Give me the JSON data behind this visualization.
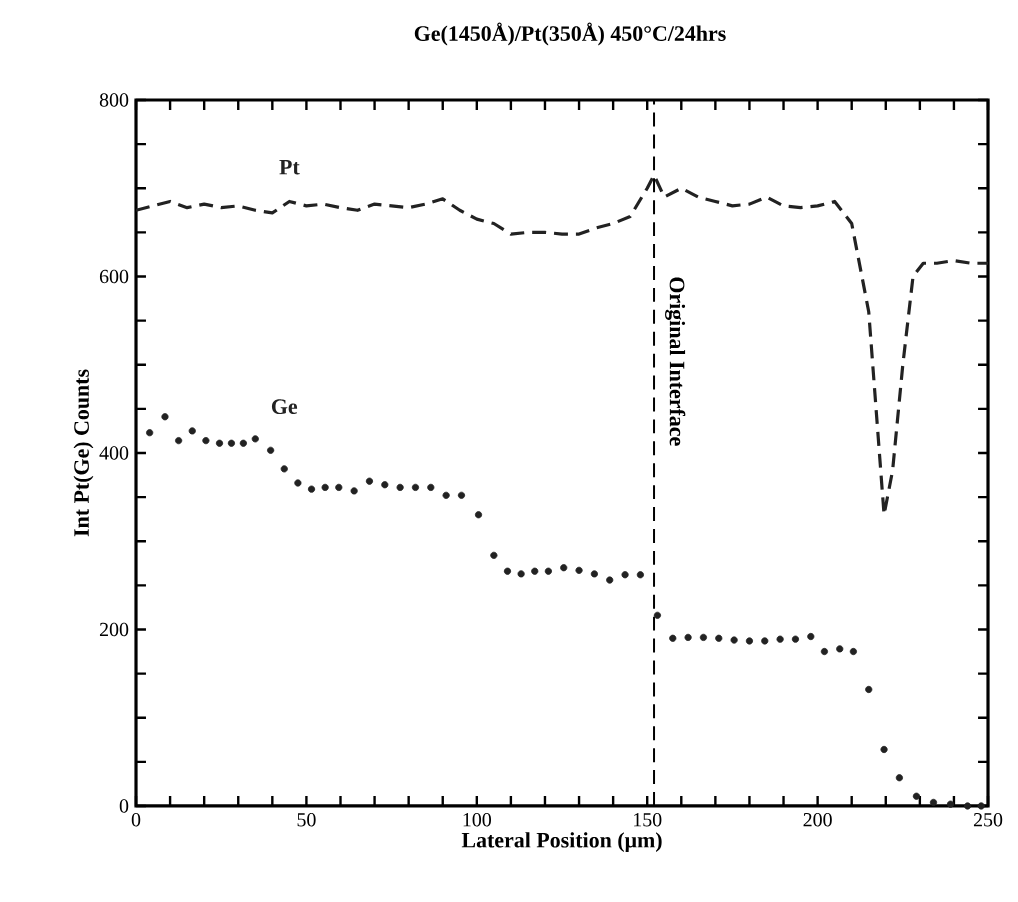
{
  "chart_data": {
    "type": "line",
    "title": "Ge(1450Å)/Pt(350Å) 450°C/24hrs",
    "xlabel": "Lateral Position (μm)",
    "ylabel": "Int Pt(Ge) Counts",
    "series": [
      {
        "name": "Pt",
        "color": "#222222",
        "marker": "none",
        "line_style": "dashed",
        "x": [
          0,
          5,
          10,
          15,
          20,
          25,
          30,
          35,
          40,
          45,
          50,
          55,
          60,
          65,
          70,
          75,
          80,
          85,
          90,
          95,
          100,
          105,
          110,
          115,
          120,
          125,
          130,
          135,
          140,
          145,
          150,
          152,
          155,
          160,
          165,
          170,
          175,
          180,
          185,
          190,
          195,
          200,
          205,
          210,
          215,
          219.5,
          222,
          225,
          228,
          231,
          235,
          240,
          245,
          250
        ],
        "values": [
          675,
          680,
          685,
          678,
          682,
          678,
          680,
          675,
          672,
          685,
          680,
          682,
          678,
          675,
          682,
          680,
          678,
          682,
          688,
          675,
          665,
          660,
          648,
          650,
          650,
          648,
          648,
          655,
          660,
          668,
          700,
          715,
          690,
          700,
          690,
          685,
          680,
          682,
          690,
          680,
          678,
          680,
          685,
          660,
          560,
          330,
          380,
          500,
          600,
          615,
          615,
          618,
          615,
          615
        ]
      },
      {
        "name": "Ge",
        "type": "scatter",
        "color": "#222222",
        "marker": "circle",
        "x": [
          4,
          8.5,
          12.5,
          16.5,
          20.5,
          24.5,
          28,
          31.5,
          35,
          39.5,
          43.5,
          47.5,
          51.5,
          55.5,
          59.5,
          64,
          68.5,
          73,
          77.5,
          82,
          86.5,
          91,
          95.5,
          100.5,
          105,
          109,
          113,
          117,
          121,
          125.5,
          130,
          134.5,
          139,
          143.5,
          148,
          153,
          157.5,
          162,
          166.5,
          171,
          175.5,
          180,
          184.5,
          189,
          193.5,
          198,
          202,
          206.5,
          210.5,
          215,
          219.5,
          224,
          229,
          234,
          239,
          244,
          248
        ],
        "values": [
          423,
          441,
          414,
          425,
          414,
          411,
          411,
          411,
          416,
          403,
          382,
          366,
          359,
          361,
          361,
          357,
          368,
          364,
          361,
          361,
          361,
          352,
          352,
          330,
          284,
          266,
          263,
          266,
          266,
          270,
          267,
          263,
          256,
          262,
          262,
          216,
          190,
          191,
          191,
          190,
          188,
          187,
          187,
          189,
          189,
          192,
          175,
          178,
          175,
          132,
          64,
          32,
          11,
          4,
          2,
          0,
          0
        ]
      }
    ],
    "xlim": [
      0,
      250
    ],
    "ylim": [
      0,
      800
    ],
    "xticks": [
      0,
      {
        "value": 10,
        "label": null
      },
      {
        "value": 20,
        "label": null
      },
      {
        "value": 30,
        "label": null
      },
      {
        "value": 40,
        "label": null
      },
      50,
      {
        "value": 60,
        "label": null
      },
      {
        "value": 70,
        "label": null
      },
      {
        "value": 80,
        "label": null
      },
      {
        "value": 90,
        "label": null
      },
      100,
      {
        "value": 110,
        "label": null
      },
      {
        "value": 120,
        "label": null
      },
      {
        "value": 130,
        "label": null
      },
      {
        "value": 140,
        "label": null
      },
      150,
      {
        "value": 160,
        "label": null
      },
      {
        "value": 170,
        "label": null
      },
      {
        "value": 180,
        "label": null
      },
      {
        "value": 190,
        "label": null
      },
      200,
      {
        "value": 210,
        "label": null
      },
      {
        "value": 220,
        "label": null
      },
      {
        "value": 230,
        "label": null
      },
      {
        "value": 240,
        "label": null
      },
      250
    ],
    "yticks": [
      0,
      {
        "value": 50,
        "label": null
      },
      {
        "value": 100,
        "label": null
      },
      {
        "value": 150,
        "label": null
      },
      200,
      {
        "value": 250,
        "label": null
      },
      {
        "value": 300,
        "label": null
      },
      {
        "value": 350,
        "label": null
      },
      400,
      {
        "value": 450,
        "label": null
      },
      {
        "value": 500,
        "label": null
      },
      {
        "value": 550,
        "label": null
      },
      600,
      {
        "value": 650,
        "label": null
      },
      {
        "value": 700,
        "label": null
      },
      {
        "value": 750,
        "label": null
      },
      800
    ],
    "ref_lines": [
      {
        "axis": "x",
        "value": 152,
        "label": "Original Interface",
        "line_style": "dashed"
      }
    ],
    "grid": false
  }
}
